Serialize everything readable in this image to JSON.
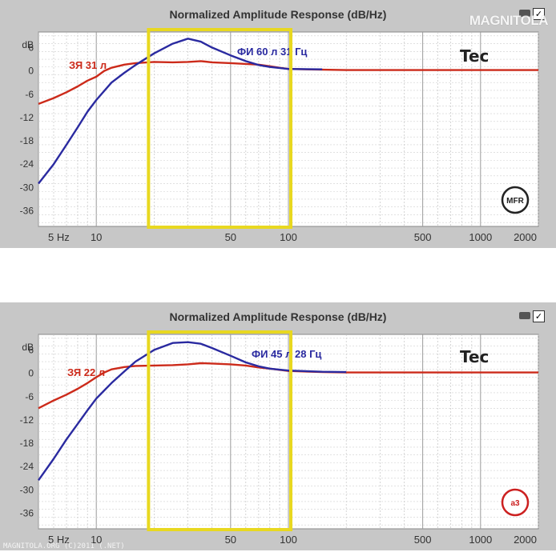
{
  "charts": [
    {
      "title": "Normalized Amplitude Response (dB/Hz)",
      "brand": "Tec",
      "watermark": "MAGNITOLA",
      "badge": "MFR",
      "badge_color": "#222222",
      "check_glyph": "✓",
      "icon": "speaker-icon"
    },
    {
      "title": "Normalized Amplitude Response (dB/Hz)",
      "brand": "Tec",
      "watermark": "",
      "badge": "a3",
      "badge_color": "#cc2020",
      "check_glyph": "✓",
      "icon": "speaker-icon"
    }
  ],
  "footer_watermark": "MAGNITOLA.ORG (C)2011 (.NET)",
  "chart_data": [
    {
      "type": "line",
      "title": "Normalized Amplitude Response (dB/Hz)",
      "xscale": "log",
      "xlim": [
        5,
        2000
      ],
      "ylim": [
        -40,
        10
      ],
      "ylabel": "dB",
      "xticks": [
        5,
        10,
        50,
        100,
        500,
        1000,
        2000
      ],
      "xtick_labels": [
        "5 Hz",
        "10",
        "50",
        "100",
        "500",
        "1000",
        "2000"
      ],
      "yticks": [
        6,
        0,
        -6,
        -12,
        -18,
        -24,
        -30,
        -36
      ],
      "grid": true,
      "highlight_box": {
        "x": [
          20,
          100
        ],
        "color": "#e8d820"
      },
      "series": [
        {
          "name": "ЗЯ 31 л",
          "color": "#cc2a1a",
          "x": [
            5,
            6,
            7,
            8,
            9,
            10,
            11,
            12,
            14,
            16,
            20,
            25,
            30,
            35,
            40,
            50,
            60,
            70,
            80,
            90,
            100,
            150,
            200,
            500,
            1000,
            2000
          ],
          "y": [
            -8.5,
            -7,
            -5.5,
            -4,
            -2.5,
            -1.5,
            0,
            0.8,
            1.6,
            2,
            2.3,
            2.2,
            2.3,
            2.5,
            2.2,
            2,
            1.8,
            1.6,
            1.2,
            0.8,
            0.5,
            0.3,
            0.2,
            0.2,
            0.2,
            0.2
          ]
        },
        {
          "name": "ФИ 60 л 31 Гц",
          "color": "#2a2aa0",
          "x": [
            5,
            6,
            7,
            8,
            9,
            10,
            12,
            14,
            16,
            20,
            25,
            30,
            35,
            40,
            50,
            60,
            70,
            80,
            100,
            150
          ],
          "y": [
            -29,
            -24,
            -19,
            -14.5,
            -10.5,
            -7.5,
            -3,
            -0.5,
            1.5,
            4.5,
            7,
            8.3,
            7.5,
            6,
            4,
            2.5,
            1.5,
            1,
            0.5,
            0.4
          ]
        }
      ]
    },
    {
      "type": "line",
      "title": "Normalized Amplitude Response (dB/Hz)",
      "xscale": "log",
      "xlim": [
        5,
        2000
      ],
      "ylim": [
        -40,
        10
      ],
      "ylabel": "dB",
      "xticks": [
        5,
        10,
        50,
        100,
        500,
        1000,
        2000
      ],
      "xtick_labels": [
        "5 Hz",
        "10",
        "50",
        "100",
        "500",
        "1000",
        "2000"
      ],
      "yticks": [
        6,
        0,
        -6,
        -12,
        -18,
        -24,
        -30,
        -36
      ],
      "grid": true,
      "highlight_box": {
        "x": [
          20,
          100
        ],
        "color": "#e8d820"
      },
      "series": [
        {
          "name": "ЗЯ 22 л",
          "color": "#cc2a1a",
          "x": [
            5,
            6,
            7,
            8,
            9,
            10,
            11,
            12,
            14,
            16,
            20,
            25,
            30,
            35,
            40,
            50,
            60,
            70,
            80,
            100,
            150,
            200,
            500,
            1000,
            2000
          ],
          "y": [
            -9,
            -7,
            -5.5,
            -4,
            -2.5,
            -1,
            0.2,
            1,
            1.6,
            1.9,
            2,
            2.1,
            2.3,
            2.6,
            2.5,
            2.3,
            2,
            1.5,
            1.2,
            0.6,
            0.3,
            0.2,
            0.2,
            0.2,
            0.2
          ]
        },
        {
          "name": "ФИ 45 л 28 Гц",
          "color": "#2a2aa0",
          "x": [
            5,
            6,
            7,
            8,
            9,
            10,
            12,
            14,
            16,
            20,
            25,
            30,
            35,
            40,
            50,
            60,
            70,
            80,
            100,
            150,
            200
          ],
          "y": [
            -27.5,
            -22,
            -17,
            -13,
            -9.5,
            -6.5,
            -2.5,
            0.5,
            3,
            6,
            7.8,
            8,
            7.6,
            6.5,
            4.5,
            2.8,
            1.8,
            1.2,
            0.7,
            0.4,
            0.3
          ]
        }
      ]
    }
  ]
}
